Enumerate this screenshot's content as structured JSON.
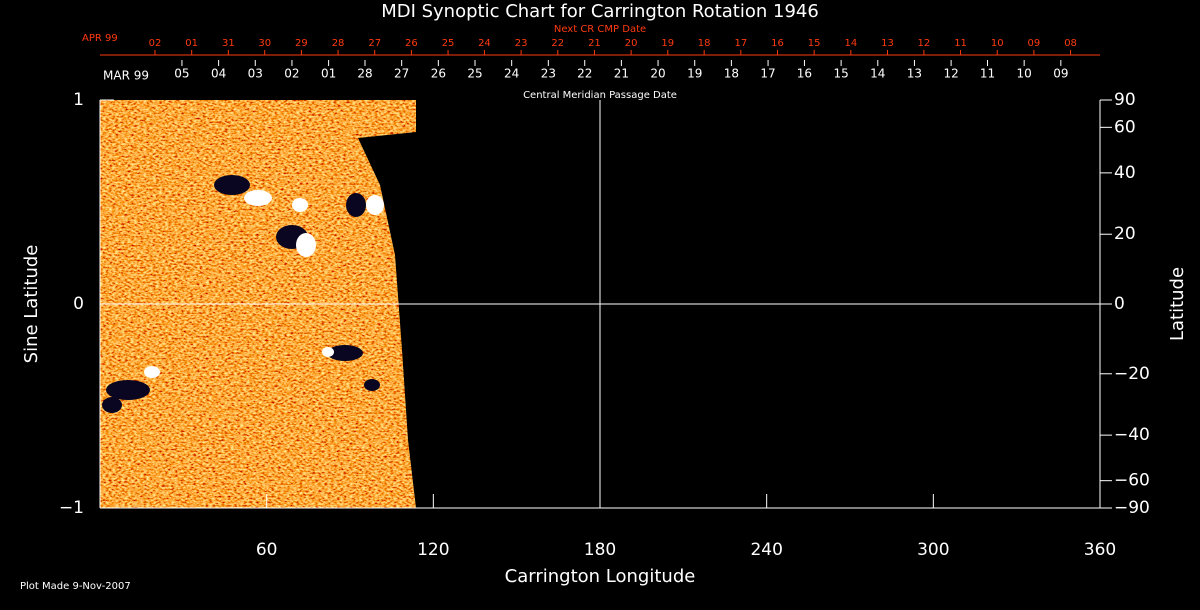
{
  "chart_data": {
    "type": "synoptic-map",
    "title": "MDI Synoptic Chart for Carrington Rotation 1946",
    "xlabel": "Carrington Longitude",
    "ylabel": "Sine Latitude",
    "y2label": "Latitude",
    "xlim": [
      0,
      360
    ],
    "xticks": [
      60,
      120,
      180,
      240,
      300,
      360
    ],
    "ylim": [
      -1,
      1
    ],
    "yticks": [
      {
        "value": -1,
        "label": "−1"
      },
      0,
      1
    ],
    "y2scale": "sine",
    "y2lim": [
      -90,
      90
    ],
    "y2ticks": [
      90,
      60,
      40,
      20,
      0,
      {
        "value": -20,
        "label": "−20"
      },
      {
        "value": -40,
        "label": "−40"
      },
      {
        "value": -60,
        "label": "−60"
      },
      {
        "value": -90,
        "label": "−90"
      }
    ],
    "crosshair_x": 180,
    "crosshair_y": 0,
    "top_axes": [
      {
        "label": "Next CR CMP Date",
        "start_label": "APR 99",
        "color": "#ff3a10",
        "dates": [
          "02",
          "01",
          "31",
          "30",
          "29",
          "28",
          "27",
          "26",
          "25",
          "24",
          "23",
          "22",
          "21",
          "20",
          "19",
          "18",
          "17",
          "16",
          "15",
          "14",
          "13",
          "12",
          "11",
          "10",
          "09",
          "08"
        ],
        "x": [
          19.8,
          33.0,
          46.2,
          59.3,
          72.5,
          85.7,
          98.9,
          112.1,
          125.3,
          138.4,
          151.6,
          164.8,
          178.0,
          191.2,
          204.4,
          217.5,
          230.7,
          243.9,
          257.1,
          270.3,
          283.5,
          296.6,
          309.8,
          323.0,
          336.2,
          349.4
        ]
      },
      {
        "label": "Central Meridian Passage Date",
        "start_label": "MAR 99",
        "color": "#ffffff",
        "dates": [
          "05",
          "04",
          "03",
          "02",
          "01",
          "28",
          "27",
          "26",
          "25",
          "24",
          "23",
          "22",
          "21",
          "20",
          "19",
          "18",
          "17",
          "16",
          "15",
          "14",
          "13",
          "12",
          "11",
          "10",
          "09"
        ],
        "x": [
          29.5,
          42.7,
          55.9,
          69.1,
          82.3,
          95.4,
          108.6,
          121.8,
          135.0,
          148.2,
          161.4,
          174.5,
          187.7,
          200.9,
          214.1,
          227.3,
          240.5,
          253.6,
          266.8,
          280.0,
          293.2,
          306.4,
          319.5,
          332.7,
          345.9
        ]
      }
    ],
    "footnote": "Plot Made  9-Nov-2007"
  }
}
